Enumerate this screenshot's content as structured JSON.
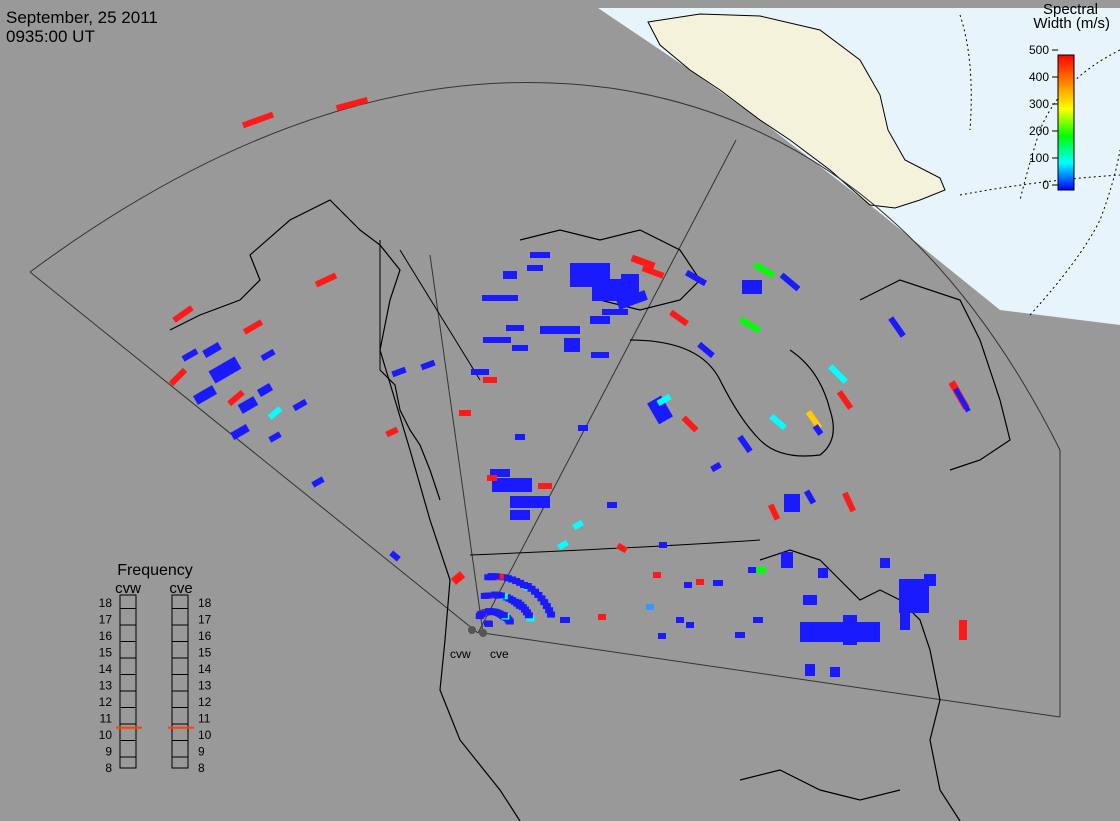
{
  "header": {
    "date": "September, 25 2011",
    "time": "0935:00 UT"
  },
  "colorbar": {
    "title_line1": "Spectral",
    "title_line2": "Width (m/s)",
    "ticks": [
      "500",
      "400",
      "300",
      "200",
      "100",
      "0"
    ],
    "gradient": [
      "#ff0000",
      "#ff8000",
      "#ffff00",
      "#00ff00",
      "#00ffff",
      "#0000ff"
    ]
  },
  "frequency": {
    "title": "Frequency",
    "radar_a_label": "cvw",
    "radar_b_label": "cve",
    "scale": [
      "18",
      "17",
      "16",
      "15",
      "14",
      "13",
      "12",
      "11",
      "10",
      "9",
      "8"
    ],
    "radar_a_mhz": 10.5,
    "radar_b_mhz": 10.5,
    "marker_color": "#ff4000"
  },
  "radars": {
    "west_label": "cvw",
    "east_label": "cve"
  },
  "colors": {
    "background_fill": "#999999",
    "night_fill": "#999999",
    "sunlit_ocean": "#e8f4fb",
    "sunlit_land": "#f5f2dc",
    "coast_line": "#000000",
    "low_width": "#1a1aff",
    "high_width": "#ff1a1a"
  }
}
